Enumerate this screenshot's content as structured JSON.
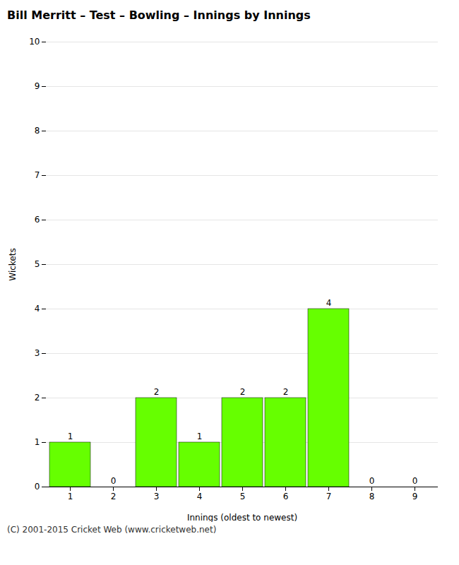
{
  "chart_data": {
    "type": "bar",
    "title": "Bill Merritt – Test – Bowling – Innings by Innings",
    "xlabel": "Innings (oldest to newest)",
    "ylabel": "Wickets",
    "categories": [
      1,
      2,
      3,
      4,
      5,
      6,
      7,
      8,
      9
    ],
    "values": [
      1,
      0,
      2,
      1,
      2,
      2,
      4,
      0,
      0
    ],
    "color": "#66ff00",
    "ylim": [
      0,
      10
    ],
    "yticks": [
      0,
      1,
      2,
      3,
      4,
      5,
      6,
      7,
      8,
      9,
      10
    ],
    "grid": true,
    "data_labels": true,
    "caption": "(C) 2001-2015 Cricket Web (www.cricketweb.net)"
  }
}
